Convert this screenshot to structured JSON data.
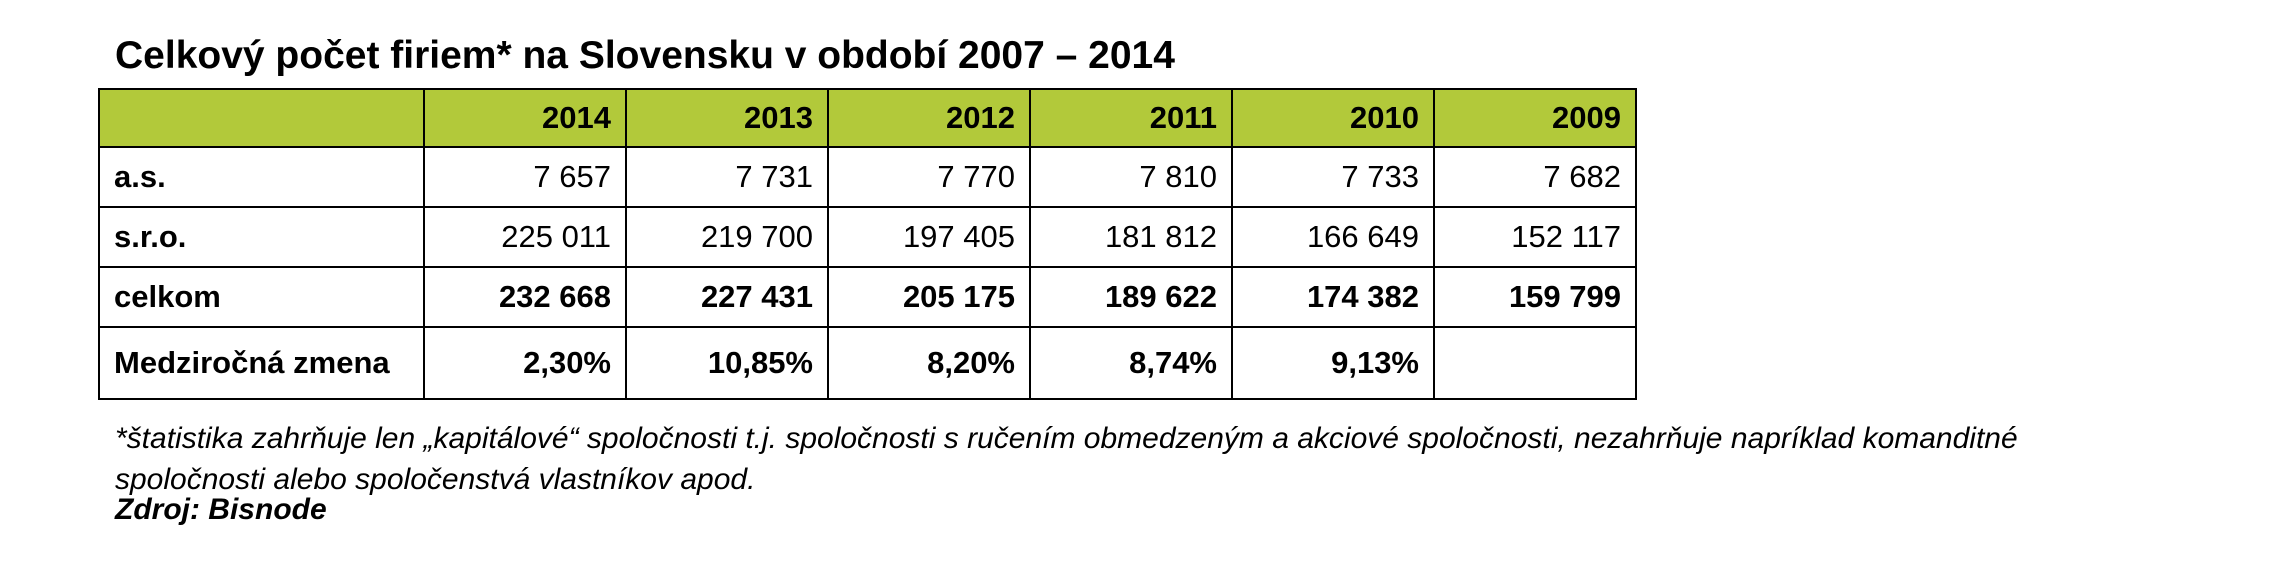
{
  "title": "Celkový počet firiem* na Slovensku v období 2007 – 2014",
  "table": {
    "header_label": "",
    "columns": [
      "2014",
      "2013",
      "2012",
      "2011",
      "2010",
      "2009"
    ],
    "rows": [
      {
        "label": "a.s.",
        "values": [
          "7 657",
          "7 731",
          "7 770",
          "7 810",
          "7 733",
          "7 682"
        ]
      },
      {
        "label": "s.r.o.",
        "values": [
          "225 011",
          "219 700",
          "197 405",
          "181 812",
          "166 649",
          "152 117"
        ]
      },
      {
        "label": "celkom",
        "values": [
          "232 668",
          "227 431",
          "205 175",
          "189 622",
          "174 382",
          "159 799"
        ]
      },
      {
        "label": "Medziročná zmena",
        "values": [
          "2,30%",
          "10,85%",
          "8,20%",
          "8,74%",
          "9,13%",
          ""
        ]
      }
    ]
  },
  "footnote": "*štatistika zahrňuje len „kapitálové“ spoločnosti t.j. spoločnosti s ručením obmedzeným a akciové spoločnosti, nezahrňuje napríklad komanditné spoločnosti alebo spoločenstvá vlastníkov apod.",
  "source": "Zdroj: Bisnode",
  "colors": {
    "header_background": "#b2c93a",
    "border": "#000000"
  }
}
